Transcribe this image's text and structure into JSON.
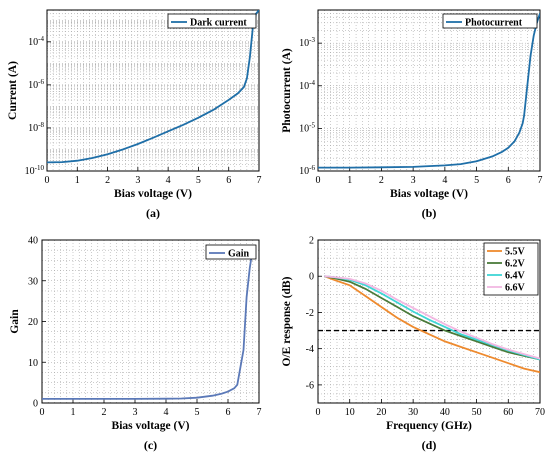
{
  "chart_data": [
    {
      "id": "a",
      "type": "line",
      "panel_label": "(a)",
      "xlabel": "Bias voltage (V)",
      "ylabel": "Current (A)",
      "xlim": [
        0,
        7
      ],
      "ylim": [
        1e-10,
        0.003
      ],
      "yscale": "log",
      "xticks": [
        "0",
        "1",
        "2",
        "3",
        "4",
        "5",
        "6",
        "7"
      ],
      "yticks": [
        {
          "v": 1e-10,
          "base": "10",
          "exp": "-10"
        },
        {
          "v": 1e-08,
          "base": "10",
          "exp": "-8"
        },
        {
          "v": 1e-06,
          "base": "10",
          "exp": "-6"
        },
        {
          "v": 0.0001,
          "base": "10",
          "exp": "-4"
        }
      ],
      "grid": true,
      "legend_position": "top-right",
      "series": [
        {
          "name": "Dark current",
          "color": "#1f6fa8",
          "x": [
            0,
            0.5,
            1,
            1.5,
            2,
            2.5,
            3,
            3.5,
            4,
            4.5,
            5,
            5.5,
            6,
            6.3,
            6.5,
            6.6,
            6.7,
            6.8,
            6.9,
            7.0
          ],
          "y": [
            2.5e-10,
            2.6e-10,
            3e-10,
            4e-10,
            6e-10,
            1e-09,
            1.8e-09,
            3.5e-09,
            7e-09,
            1.4e-08,
            3e-08,
            7e-08,
            2e-07,
            4e-07,
            8e-07,
            2e-06,
            2e-05,
            0.0005,
            0.002,
            0.003
          ]
        }
      ]
    },
    {
      "id": "b",
      "type": "line",
      "panel_label": "(b)",
      "xlabel": "Bias voltage (V)",
      "ylabel": "Photocurrent (A)",
      "xlim": [
        0,
        7
      ],
      "ylim": [
        1e-06,
        0.006
      ],
      "yscale": "log",
      "xticks": [
        "0",
        "1",
        "2",
        "3",
        "4",
        "5",
        "6",
        "7"
      ],
      "yticks": [
        {
          "v": 1e-06,
          "base": "10",
          "exp": "-6"
        },
        {
          "v": 1e-05,
          "base": "10",
          "exp": "-5"
        },
        {
          "v": 0.0001,
          "base": "10",
          "exp": "-4"
        },
        {
          "v": 0.001,
          "base": "10",
          "exp": "-3"
        }
      ],
      "grid": true,
      "legend_position": "top-right",
      "series": [
        {
          "name": "Photocurrent",
          "color": "#1f6fa8",
          "x": [
            0,
            1,
            2,
            3,
            3.5,
            4,
            4.5,
            5,
            5.5,
            5.8,
            6,
            6.2,
            6.35,
            6.45,
            6.5,
            6.6,
            6.7,
            6.8,
            6.9,
            7.0
          ],
          "y": [
            1.2e-06,
            1.2e-06,
            1.22e-06,
            1.25e-06,
            1.3e-06,
            1.35e-06,
            1.45e-06,
            1.7e-06,
            2.2e-06,
            2.8e-06,
            3.5e-06,
            5e-06,
            8e-06,
            1.3e-05,
            2e-05,
            0.0001,
            0.0005,
            0.0015,
            0.003,
            0.005
          ]
        }
      ]
    },
    {
      "id": "c",
      "type": "line",
      "panel_label": "(c)",
      "xlabel": "Bias voltage (V)",
      "ylabel": "Gain",
      "xlim": [
        0,
        7
      ],
      "ylim": [
        0,
        40
      ],
      "yscale": "linear",
      "xticks": [
        "0",
        "1",
        "2",
        "3",
        "4",
        "5",
        "6",
        "7"
      ],
      "yticks": [
        0,
        10,
        20,
        30,
        40
      ],
      "grid": true,
      "legend_position": "top-right",
      "series": [
        {
          "name": "Gain",
          "color": "#5b79b8",
          "x": [
            0,
            1,
            2,
            3,
            4,
            4.5,
            5,
            5.5,
            5.8,
            6.0,
            6.2,
            6.3,
            6.5,
            6.6,
            6.7,
            6.8
          ],
          "y": [
            1,
            1,
            1,
            1,
            1.05,
            1.1,
            1.3,
            1.8,
            2.3,
            2.8,
            3.6,
            4.5,
            13,
            26,
            33,
            38
          ]
        }
      ]
    },
    {
      "id": "d",
      "type": "line",
      "panel_label": "(d)",
      "xlabel": "Frequency (GHz)",
      "ylabel": "O/E response (dB)",
      "xlim": [
        0,
        70
      ],
      "ylim": [
        -7,
        2
      ],
      "yscale": "linear",
      "xticks": [
        "0",
        "10",
        "20",
        "30",
        "40",
        "50",
        "60",
        "70"
      ],
      "yticks": [
        -6,
        -4,
        -2,
        0,
        2
      ],
      "grid": true,
      "reference_line_y": -3,
      "legend_position": "top-right",
      "series": [
        {
          "name": "5.5V",
          "color": "#ee8a2e",
          "x": [
            2,
            5,
            10,
            15,
            20,
            25,
            30,
            35,
            40,
            45,
            50,
            55,
            60,
            65,
            70
          ],
          "y": [
            0,
            -0.2,
            -0.5,
            -1.1,
            -1.7,
            -2.3,
            -2.8,
            -3.2,
            -3.6,
            -3.9,
            -4.2,
            -4.5,
            -4.8,
            -5.1,
            -5.3
          ]
        },
        {
          "name": "6.2V",
          "color": "#4a7a3a",
          "x": [
            2,
            5,
            10,
            15,
            20,
            25,
            30,
            35,
            40,
            45,
            50,
            55,
            60,
            65,
            70
          ],
          "y": [
            0,
            -0.1,
            -0.3,
            -0.7,
            -1.2,
            -1.7,
            -2.2,
            -2.6,
            -3.0,
            -3.3,
            -3.6,
            -3.9,
            -4.2,
            -4.4,
            -4.6
          ]
        },
        {
          "name": "6.4V",
          "color": "#3fd5d5",
          "x": [
            2,
            5,
            10,
            15,
            20,
            25,
            30,
            35,
            40,
            45,
            50,
            55,
            60,
            65,
            70
          ],
          "y": [
            0,
            -0.05,
            -0.2,
            -0.5,
            -0.95,
            -1.45,
            -1.95,
            -2.4,
            -2.8,
            -3.2,
            -3.5,
            -3.8,
            -4.1,
            -4.35,
            -4.6
          ]
        },
        {
          "name": "6.6V",
          "color": "#f2b8e2",
          "x": [
            2,
            5,
            10,
            15,
            20,
            25,
            30,
            35,
            40,
            45,
            50,
            55,
            60,
            65,
            70
          ],
          "y": [
            0,
            -0.05,
            -0.15,
            -0.4,
            -0.8,
            -1.3,
            -1.75,
            -2.2,
            -2.65,
            -3.05,
            -3.4,
            -3.75,
            -4.05,
            -4.3,
            -4.55
          ]
        }
      ]
    }
  ]
}
